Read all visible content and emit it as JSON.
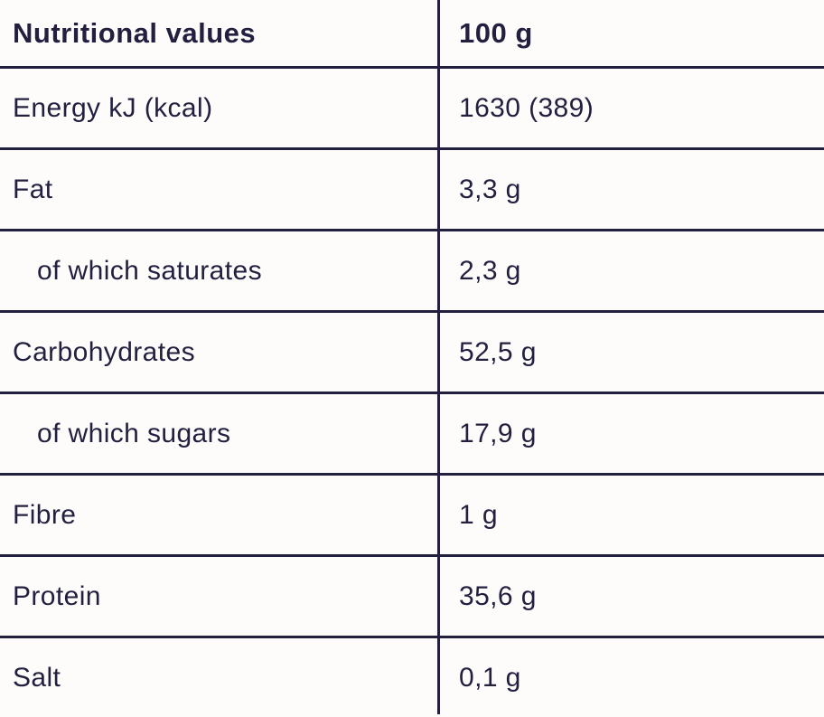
{
  "table": {
    "header": {
      "label": "Nutritional values",
      "value": "100 g"
    },
    "rows": [
      {
        "label": "Energy kJ (kcal)",
        "value": "1630 (389)",
        "indent": false
      },
      {
        "label": "Fat",
        "value": "3,3 g",
        "indent": false
      },
      {
        "label": "of which saturates",
        "value": "2,3 g",
        "indent": true
      },
      {
        "label": "Carbohydrates",
        "value": "52,5 g",
        "indent": false
      },
      {
        "label": "of which sugars",
        "value": "17,9 g",
        "indent": true
      },
      {
        "label": "Fibre",
        "value": "1 g",
        "indent": false
      },
      {
        "label": "Protein",
        "value": "35,6 g",
        "indent": false
      },
      {
        "label": "Salt",
        "value": "0,1 g",
        "indent": false
      }
    ],
    "colors": {
      "text": "#221f3f",
      "border": "#221f3f",
      "background": "#fdfcfb"
    }
  }
}
